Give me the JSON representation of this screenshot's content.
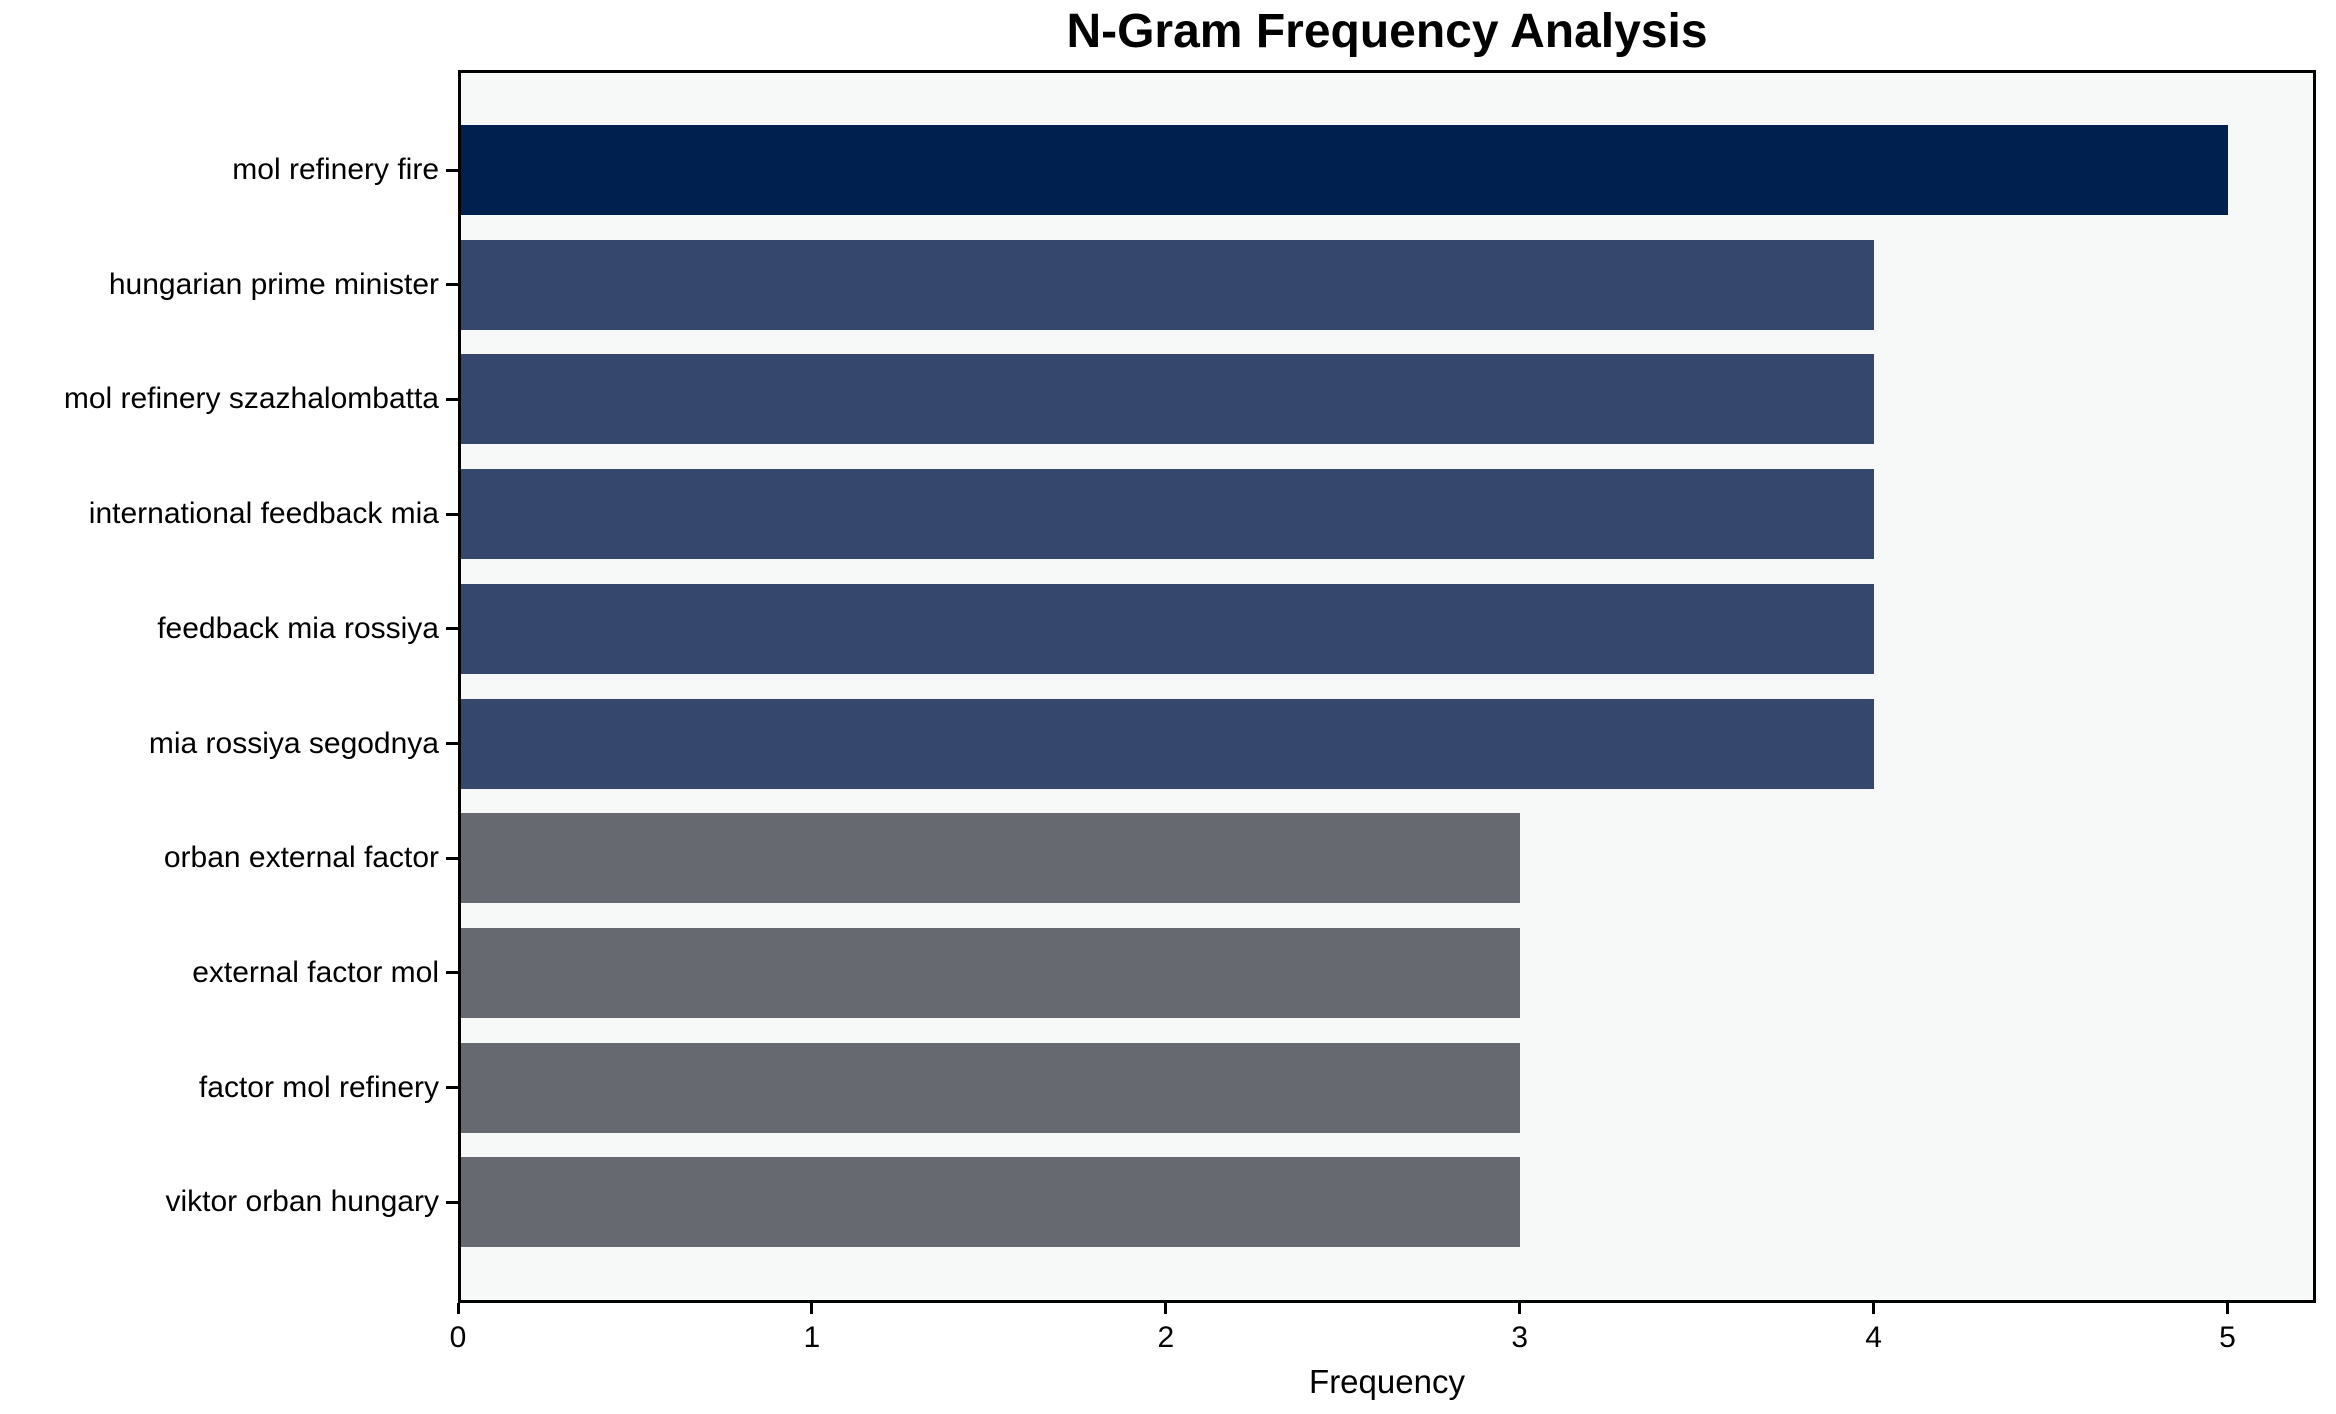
{
  "chart_data": {
    "type": "bar",
    "orientation": "horizontal",
    "title": "N-Gram Frequency Analysis",
    "xlabel": "Frequency",
    "ylabel": "",
    "categories": [
      "mol refinery fire",
      "hungarian prime minister",
      "mol refinery szazhalombatta",
      "international feedback mia",
      "feedback mia rossiya",
      "mia rossiya segodnya",
      "orban external factor",
      "external factor mol",
      "factor mol refinery",
      "viktor orban hungary"
    ],
    "values": [
      5,
      4,
      4,
      4,
      4,
      4,
      3,
      3,
      3,
      3
    ],
    "xticks": [
      0,
      1,
      2,
      3,
      4,
      5
    ],
    "xlim": [
      0,
      5.25
    ],
    "grid": false,
    "legend": null,
    "bar_colors": [
      "#002150",
      "#36476e",
      "#36476e",
      "#36476e",
      "#36476e",
      "#36476e",
      "#66696f",
      "#66696f",
      "#66696f",
      "#66696f"
    ],
    "colors": {
      "value_5_bar": "#002150",
      "value_4_bar": "#36476e",
      "value_3_bar": "#66696f",
      "plot_background": "#f7f8f8",
      "figure_background": "#ffffff",
      "axis_line": "#000000",
      "text": "#000000"
    }
  }
}
